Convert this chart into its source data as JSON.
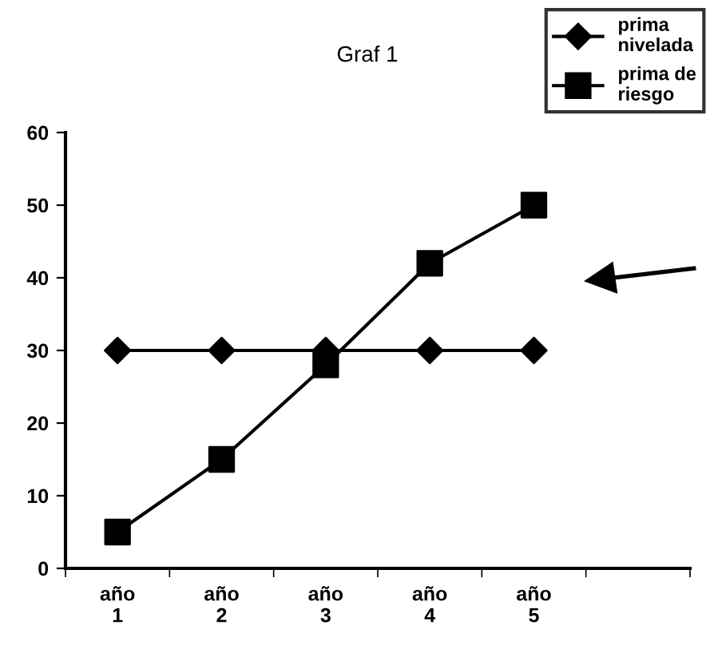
{
  "chart_data": {
    "type": "line",
    "title": "Graf 1",
    "categories": [
      "año\n1",
      "año\n2",
      "año\n3",
      "año\n4",
      "año\n5",
      null
    ],
    "series": [
      {
        "name": "prima\nnivelada",
        "color": "#000000",
        "marker": "diamond",
        "values": [
          30,
          30,
          30,
          30,
          30,
          null
        ]
      },
      {
        "name": "prima de\nriesgo",
        "color": "#000000",
        "marker": "square",
        "values": [
          5,
          15,
          28,
          42,
          50,
          null
        ]
      }
    ],
    "ylim": [
      0,
      60
    ],
    "yticks": [
      0,
      10,
      20,
      30,
      40,
      50,
      60
    ],
    "grid": false,
    "legend": "top right",
    "line_style": "solid"
  }
}
